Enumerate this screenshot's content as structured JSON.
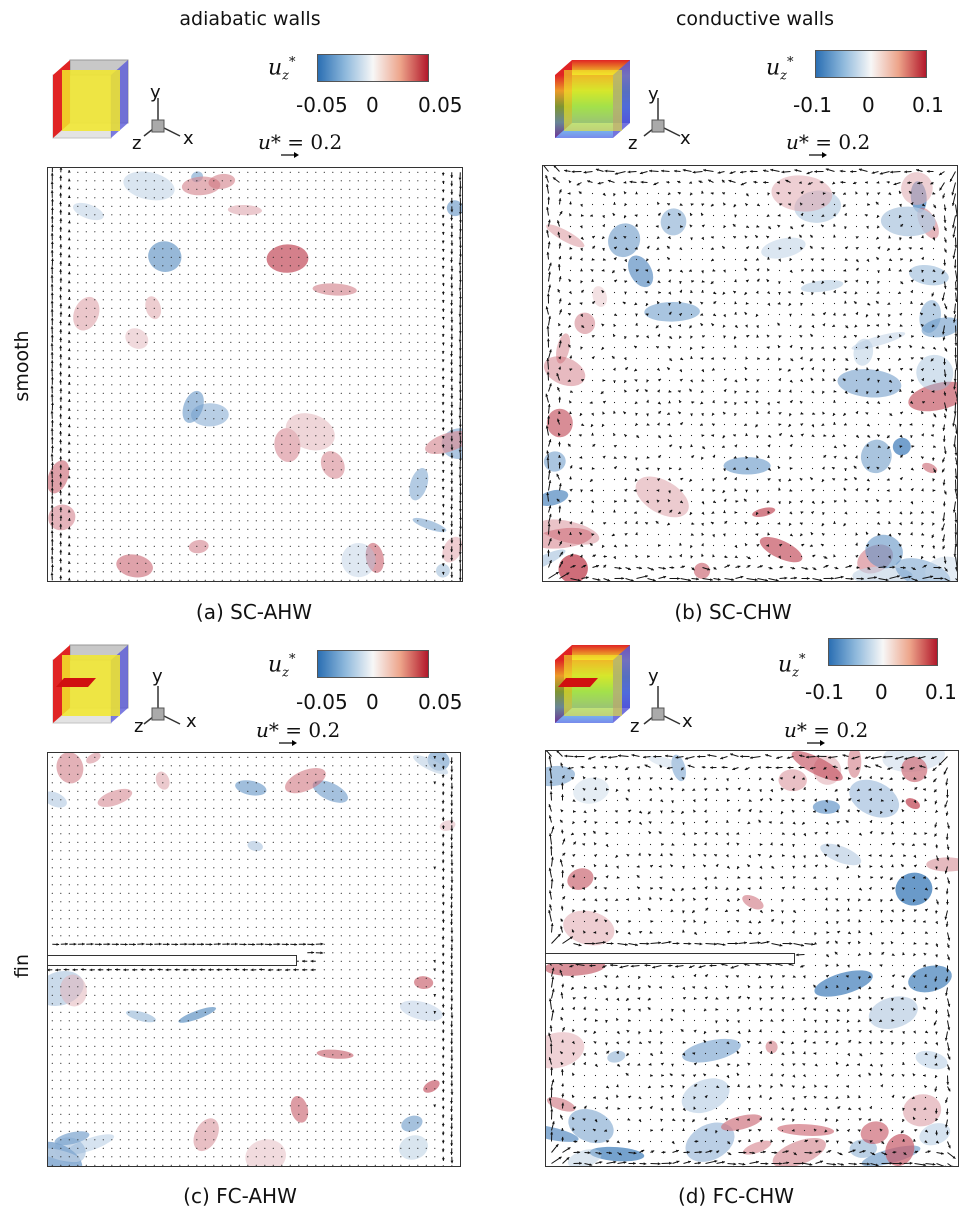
{
  "columns": {
    "left": "adiabatic walls",
    "right": "conductive walls"
  },
  "rows": {
    "top": "smooth",
    "bottom": "fin"
  },
  "colorbar": {
    "label_base": "u",
    "label_sub": "z",
    "label_sup": "*",
    "colors": [
      "#2b6fb3",
      "#f7f7f7",
      "#b2182b"
    ]
  },
  "axes": {
    "x": "x",
    "y": "y",
    "z": "z"
  },
  "reference_vector": {
    "symbol": "u*",
    "eq": "= 0.2"
  },
  "panels": [
    {
      "caption": "(a) SC-AHW",
      "ticks": [
        "-0.05",
        "0",
        "0.05"
      ]
    },
    {
      "caption": "(b) SC-CHW",
      "ticks": [
        "-0.1",
        "0",
        "0.1"
      ]
    },
    {
      "caption": "(c) FC-AHW",
      "ticks": [
        "-0.05",
        "0",
        "0.05"
      ]
    },
    {
      "caption": "(d) FC-CHW",
      "ticks": [
        "-0.1",
        "0",
        "0.1"
      ]
    }
  ]
}
